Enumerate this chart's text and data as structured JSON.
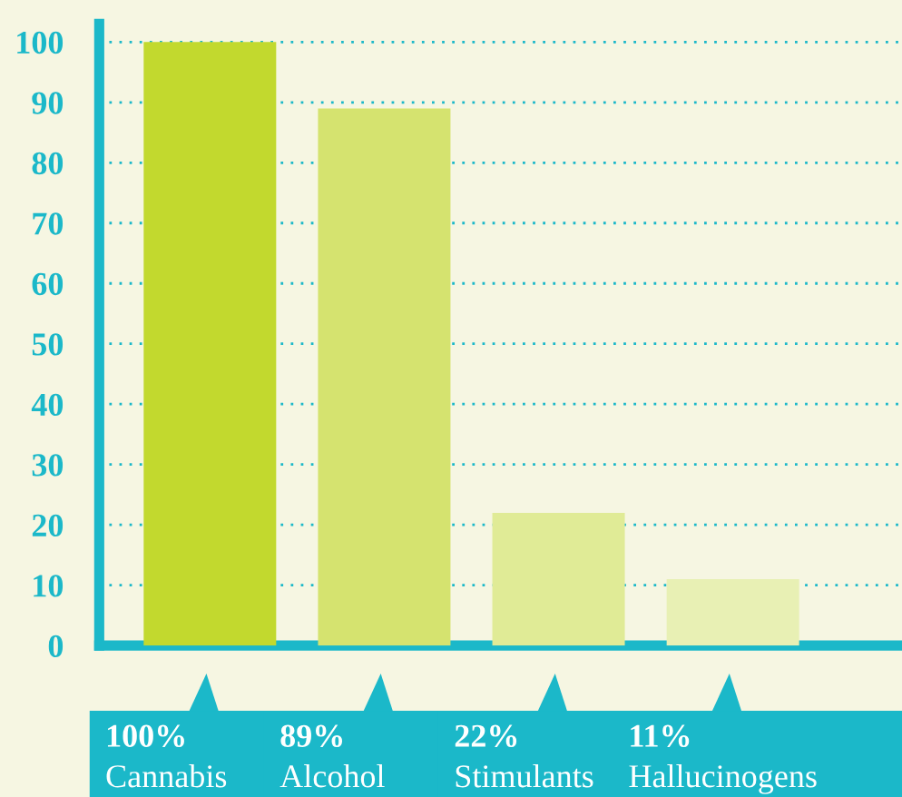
{
  "chart_data": {
    "type": "bar",
    "categories": [
      "Cannabis",
      "Alcohol",
      "Stimulants",
      "Hallucinogens"
    ],
    "values": [
      100,
      89,
      22,
      11
    ],
    "value_labels": [
      "100%",
      "89%",
      "22%",
      "11%"
    ],
    "colors": [
      "#c2d92e",
      "#d5e36f",
      "#e0eb96",
      "#e8f0b4"
    ],
    "ylim": [
      0,
      103
    ],
    "yticks": [
      0,
      10,
      20,
      30,
      40,
      50,
      60,
      70,
      80,
      90,
      100
    ],
    "grid": "y"
  }
}
